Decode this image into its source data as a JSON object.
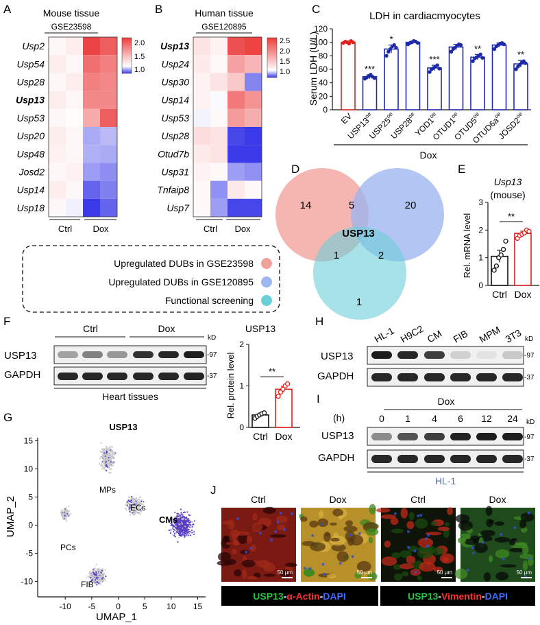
{
  "panels": {
    "A": {
      "letter": "A",
      "title": "Mouse tissue",
      "dataset": "GSE23598",
      "genes": [
        "Usp2",
        "Usp54",
        "Usp28",
        "Usp13",
        "Usp53",
        "Usp20",
        "Usp48",
        "Josd2",
        "Usp14",
        "Usp18"
      ],
      "highlight": "Usp13",
      "scale_labels": [
        "2.0",
        "1.5",
        "1.0"
      ],
      "group_labels": [
        "Ctrl",
        "Dox"
      ],
      "values": [
        [
          1.05,
          1.1,
          2.1,
          1.95
        ],
        [
          1.1,
          1.05,
          1.85,
          1.75
        ],
        [
          1.05,
          1.1,
          1.75,
          1.7
        ],
        [
          1.1,
          1.05,
          1.7,
          1.7
        ],
        [
          1.05,
          1.02,
          1.5,
          1.95
        ],
        [
          1.1,
          1.05,
          0.7,
          0.75
        ],
        [
          1.08,
          1.05,
          0.72,
          0.7
        ],
        [
          1.05,
          1.08,
          0.65,
          0.6
        ],
        [
          1.1,
          1.05,
          0.45,
          0.55
        ],
        [
          1.05,
          0.95,
          0.3,
          0.45
        ]
      ]
    },
    "B": {
      "letter": "B",
      "title": "Human tissue",
      "dataset": "GSE120895",
      "genes": [
        "Usp13",
        "Usp24",
        "Usp30",
        "Usp14",
        "Usp53",
        "Usp28",
        "Otud7b",
        "Usp31",
        "Tnfaip8",
        "Usp7"
      ],
      "highlight": "Usp13",
      "scale_labels": [
        "2.5",
        "2.0",
        "1.5",
        "1.0"
      ],
      "group_labels": [
        "Ctrl",
        "Dox"
      ],
      "values": [
        [
          1.2,
          1.1,
          2.3,
          2.4
        ],
        [
          1.15,
          1.05,
          1.7,
          1.55
        ],
        [
          1.1,
          1.2,
          1.4,
          0.5
        ],
        [
          1.1,
          0.98,
          2.0,
          1.8
        ],
        [
          0.95,
          1.05,
          1.75,
          1.6
        ],
        [
          1.25,
          1.2,
          0.25,
          0.2
        ],
        [
          1.15,
          1.2,
          0.2,
          0.2
        ],
        [
          1.1,
          1.05,
          0.6,
          0.55
        ],
        [
          1.05,
          0.55,
          1.15,
          1.05
        ],
        [
          1.05,
          0.6,
          0.25,
          0.25
        ]
      ]
    },
    "C": {
      "letter": "C",
      "title": "LDH in cardiacmyocytes",
      "ylabel": "Serum LDH (U/L)",
      "group": "Dox",
      "ticks": [
        "0",
        "20",
        "40",
        "60",
        "80",
        "100",
        "120"
      ]
    },
    "D": {
      "letter": "D",
      "counts": [
        "14",
        "5",
        "20",
        "1",
        "2",
        "1"
      ],
      "center": "USP13",
      "legend": [
        "Upregulated DUBs in GSE23598",
        "Upregulated DUBs in GSE120895",
        "Functional screening"
      ],
      "colors": [
        "#f2a09a",
        "#9db5f0",
        "#6ccfd8"
      ]
    },
    "E": {
      "letter": "E",
      "title": "Usp13",
      "subtitle": "(mouse)",
      "ylabel": "Rel. mRNA level",
      "ticks": [
        "0",
        "1",
        "2",
        "3"
      ],
      "sig": "**",
      "categories": [
        "Ctrl",
        "Dox"
      ]
    },
    "F": {
      "letter": "F",
      "groups": [
        "Ctrl",
        "Dox"
      ],
      "rows": [
        "USP13",
        "GAPDH"
      ],
      "kd_unit": "kD",
      "mw": [
        "-97",
        "-37"
      ],
      "caption": "Heart tissues",
      "chart_title": "USP13",
      "ylabel": "Rel. protein level",
      "ticks": [
        "0",
        "1",
        "2"
      ],
      "sig": "**",
      "categories": [
        "Ctrl",
        "Dox"
      ]
    },
    "G": {
      "letter": "G",
      "title": "USP13",
      "xlabel": "UMAP_1",
      "ylabel": "UMAP_2",
      "xticks": [
        "-10",
        "-5",
        "0",
        "5",
        "10",
        "15"
      ],
      "yticks": [
        "15",
        "10",
        "5",
        "0",
        "-5",
        "-10"
      ],
      "clusters": [
        "MPs",
        "ECs",
        "PCs",
        "CMs",
        "FIB"
      ]
    },
    "H": {
      "letter": "H",
      "lanes": [
        "HL-1",
        "H9C2",
        "CM",
        "FIB",
        "MPM",
        "3T3"
      ],
      "rows": [
        "USP13",
        "GAPDH"
      ],
      "kd_unit": "kD",
      "mw": [
        "-97",
        "-37"
      ]
    },
    "I": {
      "letter": "I",
      "treatment": "Dox",
      "unit": "(h)",
      "times": [
        "0",
        "1",
        "4",
        "6",
        "12",
        "24"
      ],
      "rows": [
        "USP13",
        "GAPDH"
      ],
      "kd_unit": "kD",
      "mw": [
        "-97",
        "-37"
      ],
      "cell_line": "HL-1"
    },
    "J": {
      "letter": "J",
      "titles": [
        "Ctrl",
        "Dox",
        "Ctrl",
        "Dox"
      ],
      "scale_bar": "50 μm",
      "stain1": {
        "a": "USP13",
        "sep1": "-",
        "b": "α-Actin",
        "sep2": "-",
        "c": "DAPI"
      },
      "stain2": {
        "a": "USP13",
        "sep1": "-",
        "b": "Vimentin",
        "sep2": "-",
        "c": "DAPI"
      }
    }
  },
  "chart_data": [
    {
      "type": "bar",
      "title": "LDH in cardiacmyocytes",
      "ylabel": "Serum LDH (U/L)",
      "xlabel": "Dox",
      "ylim": [
        0,
        120
      ],
      "categories": [
        "EV",
        "USP13oe",
        "USP25oe",
        "USP28oe",
        "YOD1oe",
        "OTUD1oe",
        "OTUD5oe",
        "OTUD6aoe",
        "JOSD2oe"
      ],
      "category_labels": [
        {
          "base": "EV",
          "sup": ""
        },
        {
          "base": "USP13",
          "sup": "oe"
        },
        {
          "base": "USP25",
          "sup": "oe"
        },
        {
          "base": "USP28",
          "sup": "oe"
        },
        {
          "base": "YOD1",
          "sup": "oe"
        },
        {
          "base": "OTUD1",
          "sup": "oe"
        },
        {
          "base": "OTUD5",
          "sup": "oe"
        },
        {
          "base": "OTUD6a",
          "sup": "oe"
        },
        {
          "base": "JOSD2",
          "sup": "oe"
        }
      ],
      "values": [
        100,
        49,
        90,
        100,
        62,
        93,
        78,
        96,
        68
      ],
      "errors": [
        2,
        3,
        6,
        2,
        4,
        4,
        4,
        3,
        5
      ],
      "significance": [
        "",
        "***",
        "*",
        "",
        "***",
        "",
        "**",
        "",
        "**"
      ],
      "points": [
        [
          99,
          101,
          100,
          98,
          102,
          100
        ],
        [
          46,
          48,
          50,
          52,
          49,
          47
        ],
        [
          80,
          86,
          90,
          94,
          96,
          92
        ],
        [
          97,
          99,
          100,
          102,
          101,
          99
        ],
        [
          56,
          60,
          62,
          64,
          66,
          61
        ],
        [
          86,
          90,
          92,
          95,
          97,
          96
        ],
        [
          72,
          76,
          78,
          80,
          82,
          77
        ],
        [
          90,
          94,
          96,
          98,
          99,
          97
        ],
        [
          60,
          64,
          67,
          70,
          72,
          69
        ]
      ]
    },
    {
      "type": "bar",
      "title": "Usp13 (mouse)",
      "ylabel": "Rel. mRNA level",
      "ylim": [
        0,
        3
      ],
      "categories": [
        "Ctrl",
        "Dox"
      ],
      "values": [
        1.05,
        1.88
      ],
      "errors": [
        0.22,
        0.08
      ],
      "significance": "**",
      "points": [
        [
          0.55,
          0.7,
          1.0,
          1.1,
          1.3,
          1.6
        ],
        [
          1.7,
          1.8,
          1.85,
          1.9,
          2.0,
          1.95
        ]
      ]
    },
    {
      "type": "bar",
      "title": "USP13",
      "ylabel": "Rel. protein level",
      "ylim": [
        0,
        2
      ],
      "categories": [
        "Ctrl",
        "Dox"
      ],
      "values": [
        0.3,
        0.92
      ],
      "errors": [
        0.04,
        0.07
      ],
      "significance": "**",
      "points": [
        [
          0.22,
          0.27,
          0.3,
          0.33,
          0.35
        ],
        [
          0.75,
          0.85,
          0.92,
          1.0,
          1.05
        ]
      ]
    },
    {
      "type": "scatter",
      "title": "USP13",
      "xlabel": "UMAP_1",
      "ylabel": "UMAP_2",
      "xlim": [
        -13,
        17
      ],
      "ylim": [
        -13,
        17
      ],
      "clusters": [
        {
          "name": "MPs",
          "center": [
            -2,
            12
          ],
          "spread": [
            2,
            3.2
          ]
        },
        {
          "name": "ECs",
          "center": [
            3,
            3.5
          ],
          "spread": [
            2.2,
            2.5
          ]
        },
        {
          "name": "PCs",
          "center": [
            -10,
            2
          ],
          "spread": [
            1.3,
            1.6
          ]
        },
        {
          "name": "CMs",
          "center": [
            12,
            0
          ],
          "spread": [
            3,
            3.2
          ]
        },
        {
          "name": "FIB",
          "center": [
            -4,
            -9
          ],
          "spread": [
            2.4,
            2.3
          ]
        }
      ]
    }
  ]
}
